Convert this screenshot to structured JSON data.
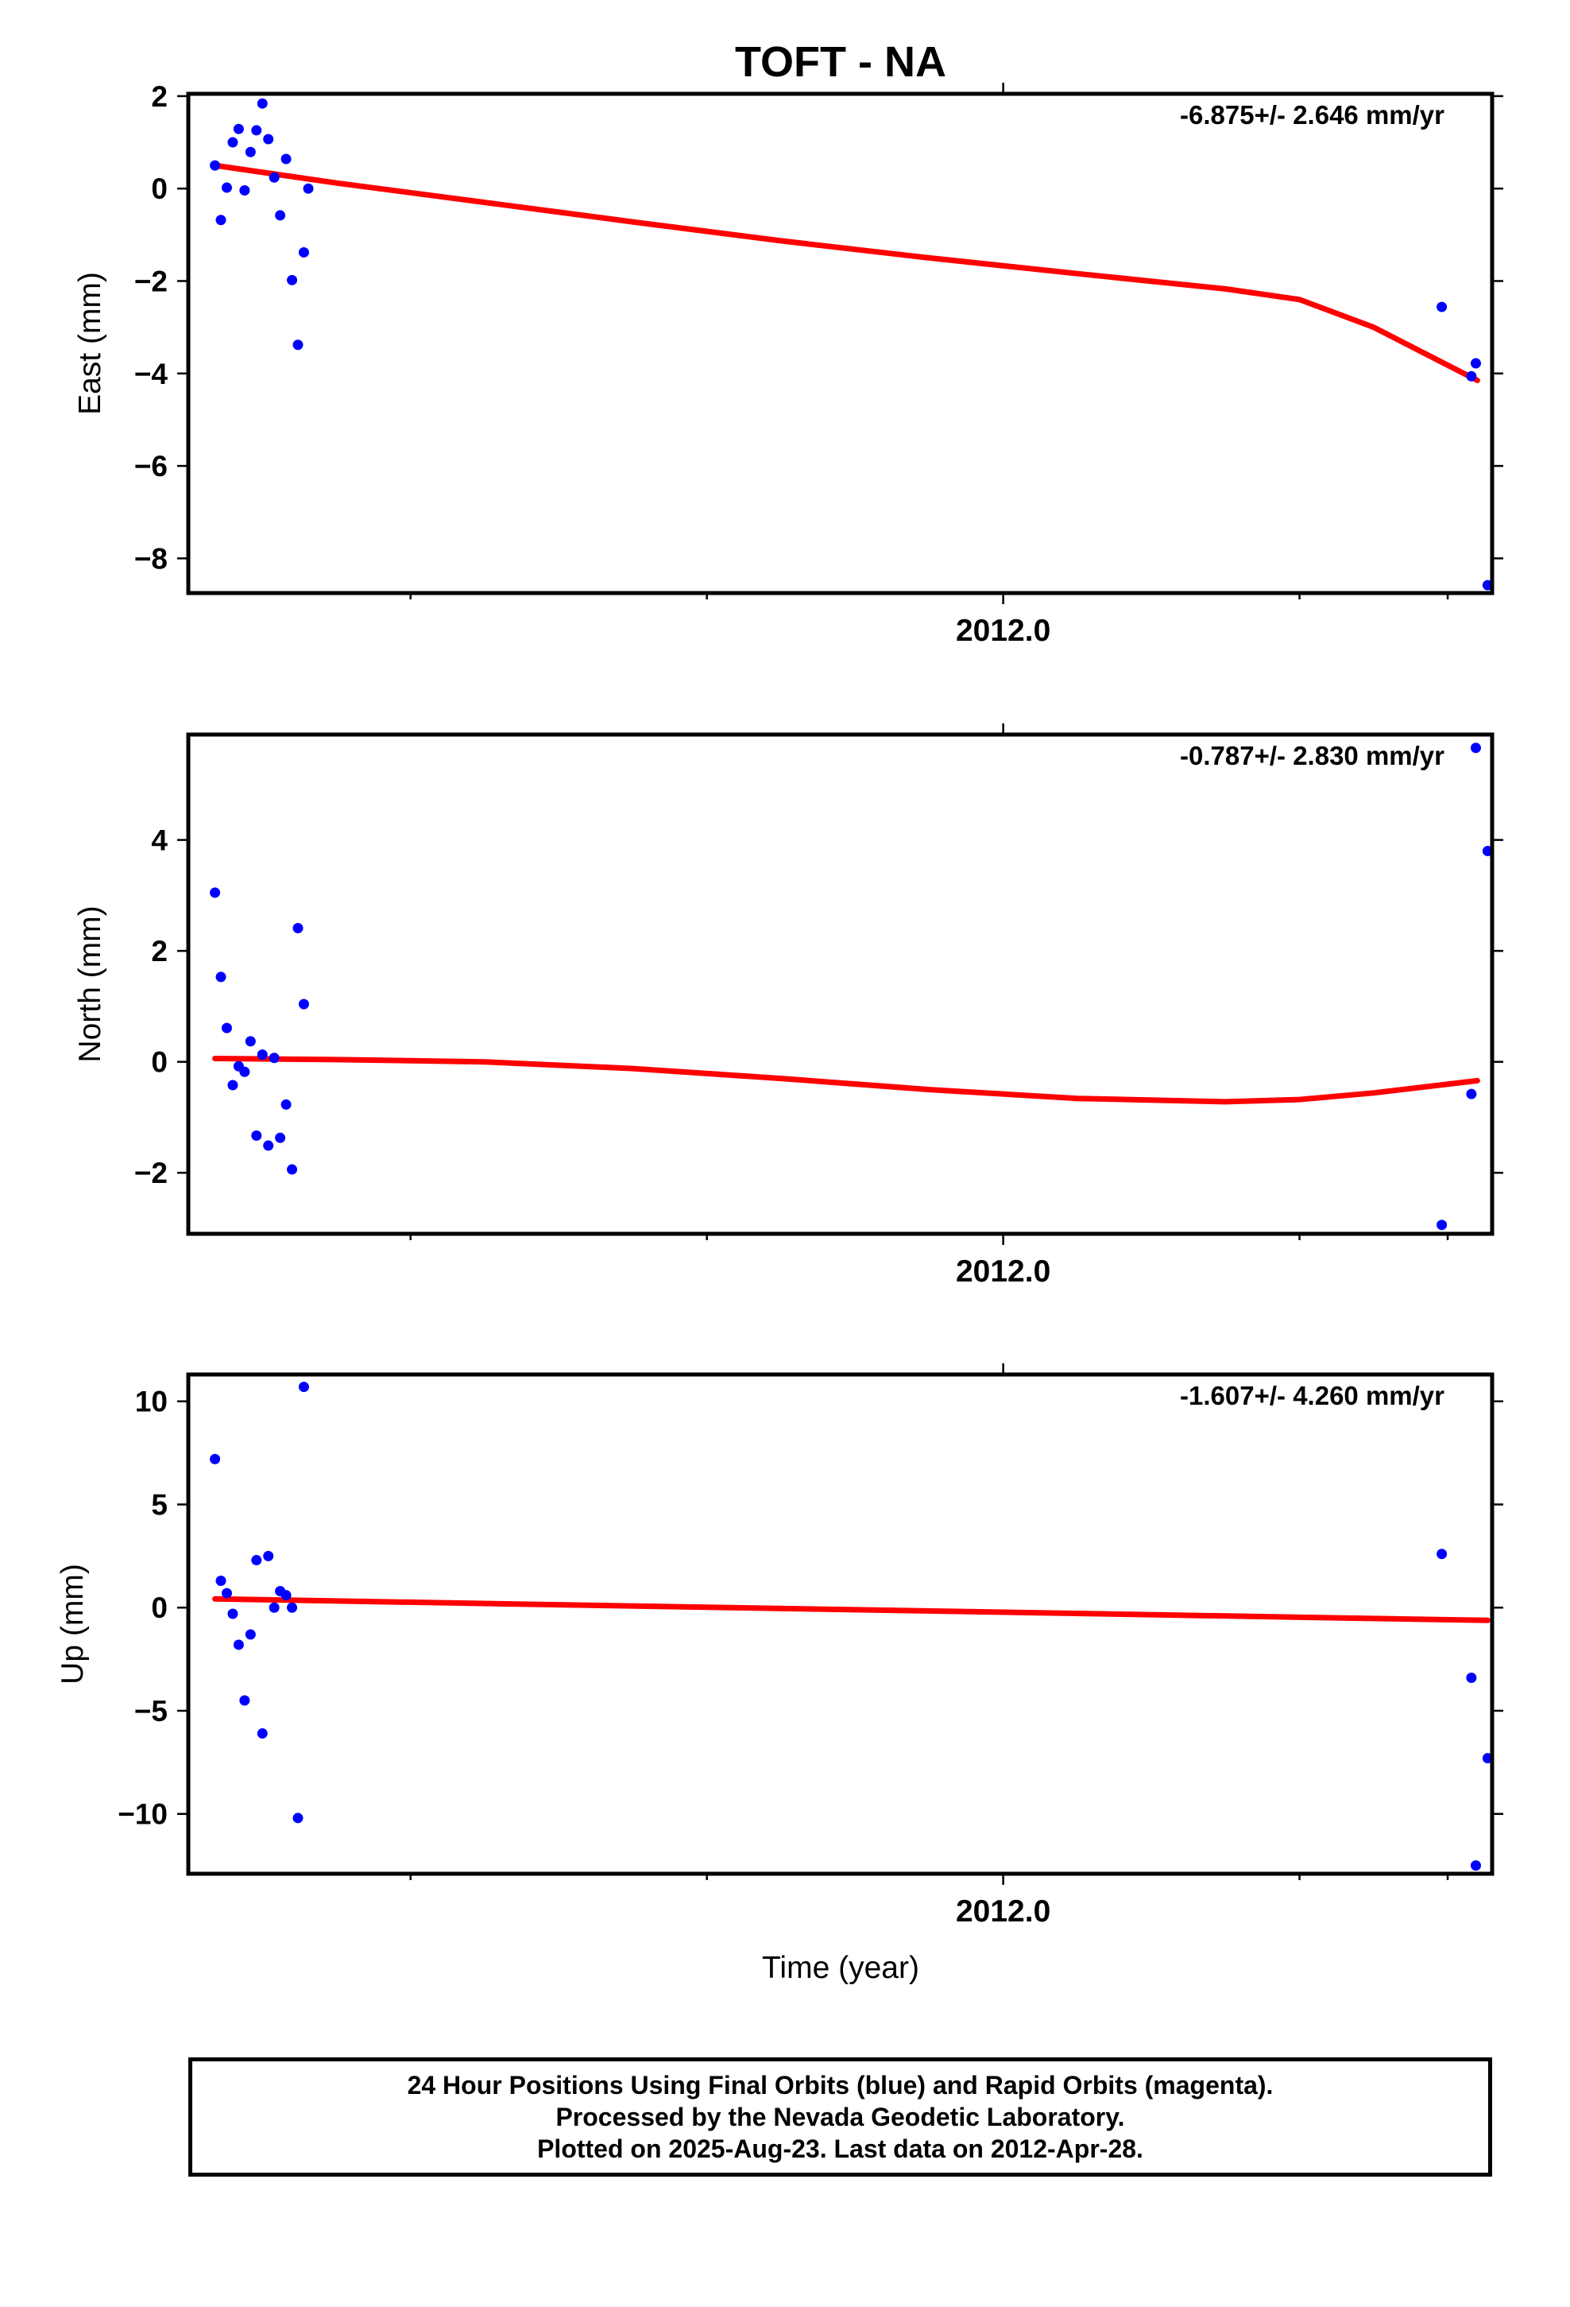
{
  "title": "TOFT - NA",
  "xlabel": "Time (year)",
  "footer": {
    "line1": "24 Hour Positions Using Final Orbits (blue) and Rapid Orbits (magenta).",
    "line2": "Processed by the Nevada Geodetic Laboratory.",
    "line3": "Plotted on 2025-Aug-23. Last data on 2012-Apr-28."
  },
  "colors": {
    "points": "#0000ff",
    "fit": "#ff0000",
    "frame": "#000000"
  },
  "chart_data": [
    {
      "type": "scatter",
      "ylabel": "East (mm)",
      "rate_text": "-6.875+/- 2.646 mm/yr",
      "xlim": [
        2011.45,
        2012.33
      ],
      "ylim": [
        -8.75,
        2.05
      ],
      "yticks": [
        2,
        0,
        -2,
        -4,
        -6,
        -8
      ],
      "ytick_labels": [
        "2",
        "0",
        "−2",
        "−4",
        "−6",
        "−8"
      ],
      "xtick_label": "2012.0",
      "points": {
        "x": [
          2011.468,
          2011.472,
          2011.476,
          2011.48,
          2011.484,
          2011.488,
          2011.492,
          2011.496,
          2011.5,
          2011.504,
          2011.508,
          2011.512,
          2011.516,
          2011.52,
          2011.524,
          2011.528,
          2011.531,
          2012.296,
          2012.316,
          2012.319,
          2012.327
        ],
        "y": [
          0.5,
          -0.68,
          0.02,
          1.0,
          1.29,
          -0.04,
          0.79,
          1.26,
          1.84,
          1.07,
          0.24,
          -0.58,
          0.64,
          -1.98,
          -3.38,
          -1.38,
          0.0,
          -2.56,
          -4.06,
          -3.78,
          -8.58
        ]
      },
      "points_override_note_removed": true,
      "fit": {
        "x": [
          2011.468,
          2011.55,
          2011.65,
          2011.75,
          2011.85,
          2011.95,
          2012.05,
          2012.15,
          2012.2,
          2012.25,
          2012.32
        ],
        "y": [
          0.5,
          0.12,
          -0.3,
          -0.72,
          -1.13,
          -1.5,
          -1.84,
          -2.17,
          -2.4,
          -3.0,
          -4.15
        ]
      }
    },
    {
      "type": "scatter",
      "ylabel": "North (mm)",
      "rate_text": "-0.787+/- 2.830 mm/yr",
      "xlim": [
        2011.45,
        2012.33
      ],
      "ylim": [
        -3.1,
        5.9
      ],
      "yticks": [
        4,
        2,
        0,
        -2
      ],
      "ytick_labels": [
        "4",
        "2",
        "0",
        "−2"
      ],
      "xtick_label": "2012.0",
      "points": {
        "x": [
          2011.468,
          2011.472,
          2011.476,
          2011.48,
          2011.484,
          2011.488,
          2011.492,
          2011.496,
          2011.5,
          2011.504,
          2011.508,
          2011.512,
          2011.516,
          2011.52,
          2011.524,
          2011.528,
          2012.296,
          2012.316,
          2012.319,
          2012.327
        ],
        "y": [
          3.05,
          1.53,
          0.61,
          -0.42,
          -0.08,
          -0.18,
          0.37,
          -1.33,
          0.13,
          -1.51,
          0.07,
          -1.37,
          -0.77,
          -1.94,
          2.41,
          1.04,
          -2.94,
          -0.58,
          5.66,
          3.8
        ]
      },
      "fit": {
        "x": [
          2011.468,
          2011.55,
          2011.65,
          2011.75,
          2011.85,
          2011.95,
          2012.05,
          2012.15,
          2012.2,
          2012.25,
          2012.32
        ],
        "y": [
          0.06,
          0.04,
          0.0,
          -0.12,
          -0.3,
          -0.5,
          -0.66,
          -0.72,
          -0.68,
          -0.56,
          -0.34
        ]
      }
    },
    {
      "type": "scatter",
      "ylabel": "Up (mm)",
      "rate_text": "-1.607+/- 4.260 mm/yr",
      "xlim": [
        2011.45,
        2012.33
      ],
      "ylim": [
        -12.9,
        11.3
      ],
      "yticks": [
        10,
        5,
        0,
        -5,
        -10
      ],
      "ytick_labels": [
        "10",
        "5",
        "0",
        "−5",
        "−10"
      ],
      "xtick_label": "2012.0",
      "points": {
        "x": [
          2011.468,
          2011.472,
          2011.476,
          2011.48,
          2011.484,
          2011.488,
          2011.492,
          2011.496,
          2011.5,
          2011.504,
          2011.508,
          2011.512,
          2011.516,
          2011.52,
          2011.524,
          2011.528,
          2012.296,
          2012.316,
          2012.319,
          2012.327
        ],
        "y": [
          7.2,
          1.3,
          0.7,
          -0.3,
          -1.8,
          -4.5,
          -1.3,
          2.3,
          -6.1,
          2.5,
          0.0,
          0.8,
          0.6,
          0.0,
          -10.2,
          10.7,
          2.6,
          -3.4,
          -12.5,
          -7.3
        ]
      },
      "fit": {
        "x": [
          2011.468,
          2012.327
        ],
        "y": [
          0.42,
          -0.62
        ]
      }
    }
  ]
}
